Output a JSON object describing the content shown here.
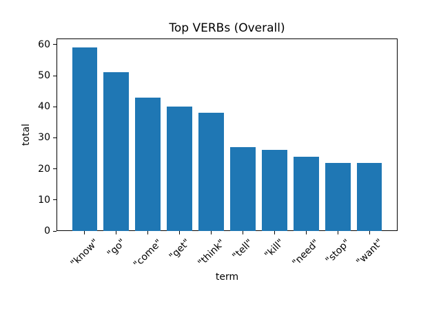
{
  "chart_data": {
    "type": "bar",
    "title": "Top VERBs (Overall)",
    "xlabel": "term",
    "ylabel": "total",
    "categories": [
      "\"know\"",
      "\"go\"",
      "\"come\"",
      "\"get\"",
      "\"think\"",
      "\"tell\"",
      "\"kill\"",
      "\"need\"",
      "\"stop\"",
      "\"want\""
    ],
    "values": [
      59,
      51,
      43,
      40,
      38,
      27,
      26,
      24,
      22,
      22
    ],
    "yticks": [
      0,
      10,
      20,
      30,
      40,
      50,
      60
    ],
    "ylim": [
      0,
      61.95
    ],
    "xlim": [
      -0.89,
      9.89
    ],
    "bar_width": 0.8,
    "bar_color": "#1f77b4",
    "grid": false,
    "legend": "none"
  }
}
